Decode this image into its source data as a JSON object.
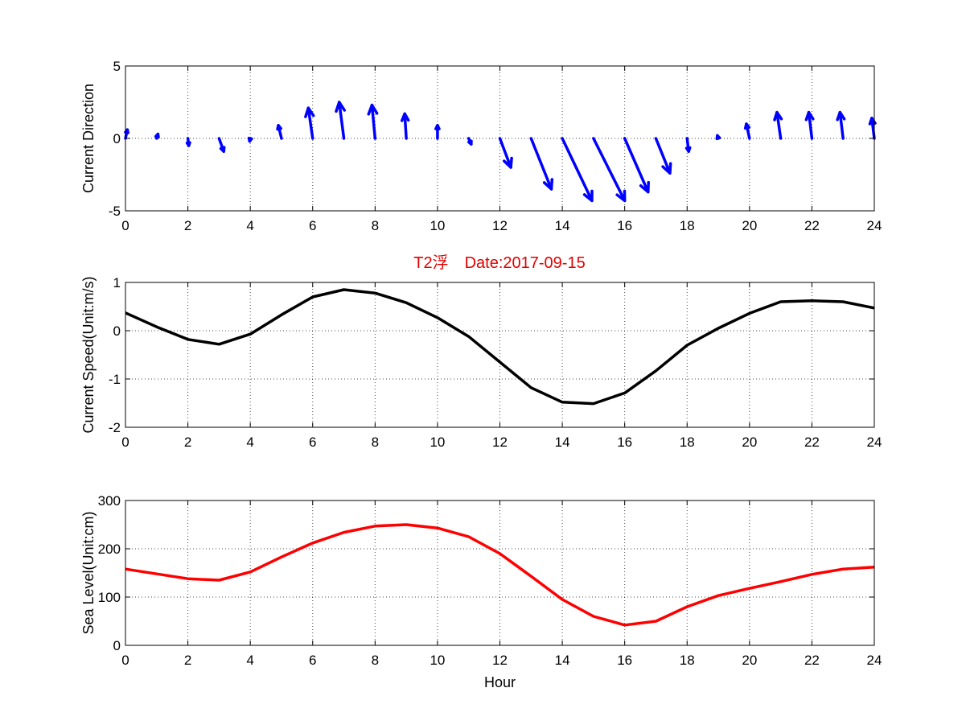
{
  "title": "T2浮　Date:2017-09-15",
  "chart_data": [
    {
      "type": "quiver",
      "ylabel": "Current Direction",
      "xlim": [
        0,
        24
      ],
      "ylim": [
        -5,
        5
      ],
      "xticks": [
        0,
        2,
        4,
        6,
        8,
        10,
        12,
        14,
        16,
        18,
        20,
        22,
        24
      ],
      "yticks": [
        -5,
        0,
        5
      ],
      "grid": true,
      "color": "#0000ff",
      "x": [
        0,
        1,
        2,
        3,
        4,
        5,
        6,
        7,
        8,
        9,
        10,
        11,
        12,
        13,
        14,
        15,
        16,
        17,
        18,
        19,
        20,
        21,
        22,
        23,
        24
      ],
      "u": [
        0.06,
        0.04,
        0.03,
        0.15,
        -0.02,
        -0.1,
        -0.14,
        -0.15,
        -0.1,
        -0.05,
        0.0,
        0.08,
        0.35,
        0.65,
        0.95,
        1.0,
        0.75,
        0.45,
        0.05,
        -0.03,
        -0.1,
        -0.12,
        -0.1,
        -0.1,
        -0.08
      ],
      "v": [
        0.6,
        0.3,
        -0.5,
        -0.9,
        -0.2,
        0.9,
        2.1,
        2.5,
        2.3,
        1.7,
        0.9,
        -0.4,
        -2.0,
        -3.5,
        -4.3,
        -4.3,
        -3.7,
        -2.4,
        -0.9,
        0.2,
        1.0,
        1.8,
        1.8,
        1.8,
        1.4
      ]
    },
    {
      "type": "line",
      "ylabel": "Current Speed(Unit:m/s)",
      "xlim": [
        0,
        24
      ],
      "ylim": [
        -2,
        1
      ],
      "xticks": [
        0,
        2,
        4,
        6,
        8,
        10,
        12,
        14,
        16,
        18,
        20,
        22,
        24
      ],
      "yticks": [
        -2,
        -1,
        0,
        1
      ],
      "grid": true,
      "color": "#000000",
      "x": [
        0,
        1,
        2,
        3,
        4,
        5,
        6,
        7,
        8,
        9,
        10,
        11,
        12,
        13,
        14,
        15,
        16,
        17,
        18,
        19,
        20,
        21,
        22,
        23,
        24
      ],
      "y": [
        0.37,
        0.08,
        -0.18,
        -0.28,
        -0.07,
        0.33,
        0.7,
        0.85,
        0.78,
        0.58,
        0.27,
        -0.12,
        -0.65,
        -1.18,
        -1.48,
        -1.51,
        -1.29,
        -0.83,
        -0.3,
        0.05,
        0.36,
        0.6,
        0.62,
        0.6,
        0.47
      ]
    },
    {
      "type": "line",
      "xlabel": "Hour",
      "ylabel": "Sea Level(Unit:cm)",
      "xlim": [
        0,
        24
      ],
      "ylim": [
        0,
        300
      ],
      "xticks": [
        0,
        2,
        4,
        6,
        8,
        10,
        12,
        14,
        16,
        18,
        20,
        22,
        24
      ],
      "yticks": [
        0,
        100,
        200,
        300
      ],
      "grid": true,
      "color": "#ff0000",
      "x": [
        0,
        1,
        2,
        3,
        4,
        5,
        6,
        7,
        8,
        9,
        10,
        11,
        12,
        13,
        14,
        15,
        16,
        17,
        18,
        19,
        20,
        21,
        22,
        23,
        24
      ],
      "y": [
        158,
        148,
        138,
        135,
        152,
        183,
        212,
        234,
        247,
        250,
        243,
        225,
        190,
        143,
        95,
        60,
        42,
        50,
        80,
        103,
        118,
        132,
        147,
        158,
        162
      ]
    }
  ]
}
